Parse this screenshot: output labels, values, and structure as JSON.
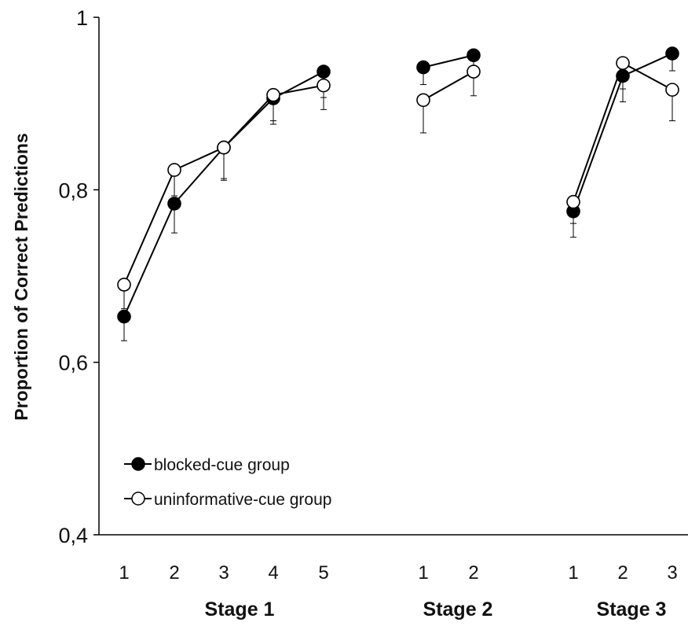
{
  "chart_data": {
    "type": "line",
    "ylabel": "Proportion of Correct Predictions",
    "ylim": [
      0.4,
      1.0
    ],
    "yticks": [
      {
        "value": 0.4,
        "label": "0,4"
      },
      {
        "value": 0.6,
        "label": "0,6"
      },
      {
        "value": 0.8,
        "label": "0,8"
      },
      {
        "value": 1.0,
        "label": "1"
      }
    ],
    "groups": [
      {
        "label": "Stage 1",
        "categories": [
          "1",
          "2",
          "3",
          "4",
          "5"
        ]
      },
      {
        "label": "Stage 2",
        "categories": [
          "1",
          "2"
        ]
      },
      {
        "label": "Stage 3",
        "categories": [
          "1",
          "2",
          "3"
        ]
      }
    ],
    "series": [
      {
        "name": "blocked-cue group",
        "marker": "filled-circle",
        "color": "#000000",
        "values": [
          [
            0.653,
            0.784,
            0.849,
            0.906,
            0.937
          ],
          [
            0.942,
            0.956
          ],
          [
            0.775,
            0.932,
            0.958
          ]
        ],
        "error": [
          [
            0.028,
            0.034,
            0.038,
            0.03,
            0.03
          ],
          [
            0.02,
            0.025
          ],
          [
            0.03,
            0.03,
            0.02
          ]
        ],
        "error_direction": "down"
      },
      {
        "name": "uninformative-cue group",
        "marker": "open-circle",
        "color": "#000000",
        "values": [
          [
            0.69,
            0.823,
            0.849,
            0.91,
            0.921
          ],
          [
            0.904,
            0.937
          ],
          [
            0.786,
            0.947,
            0.916
          ]
        ],
        "error": [
          [
            0.028,
            0.03,
            0.036,
            0.03,
            0.028
          ],
          [
            0.038,
            0.028
          ],
          [
            0.025,
            0.03,
            0.036
          ]
        ],
        "error_direction": "down"
      }
    ],
    "legend_position": "bottom-left",
    "grid": false
  }
}
